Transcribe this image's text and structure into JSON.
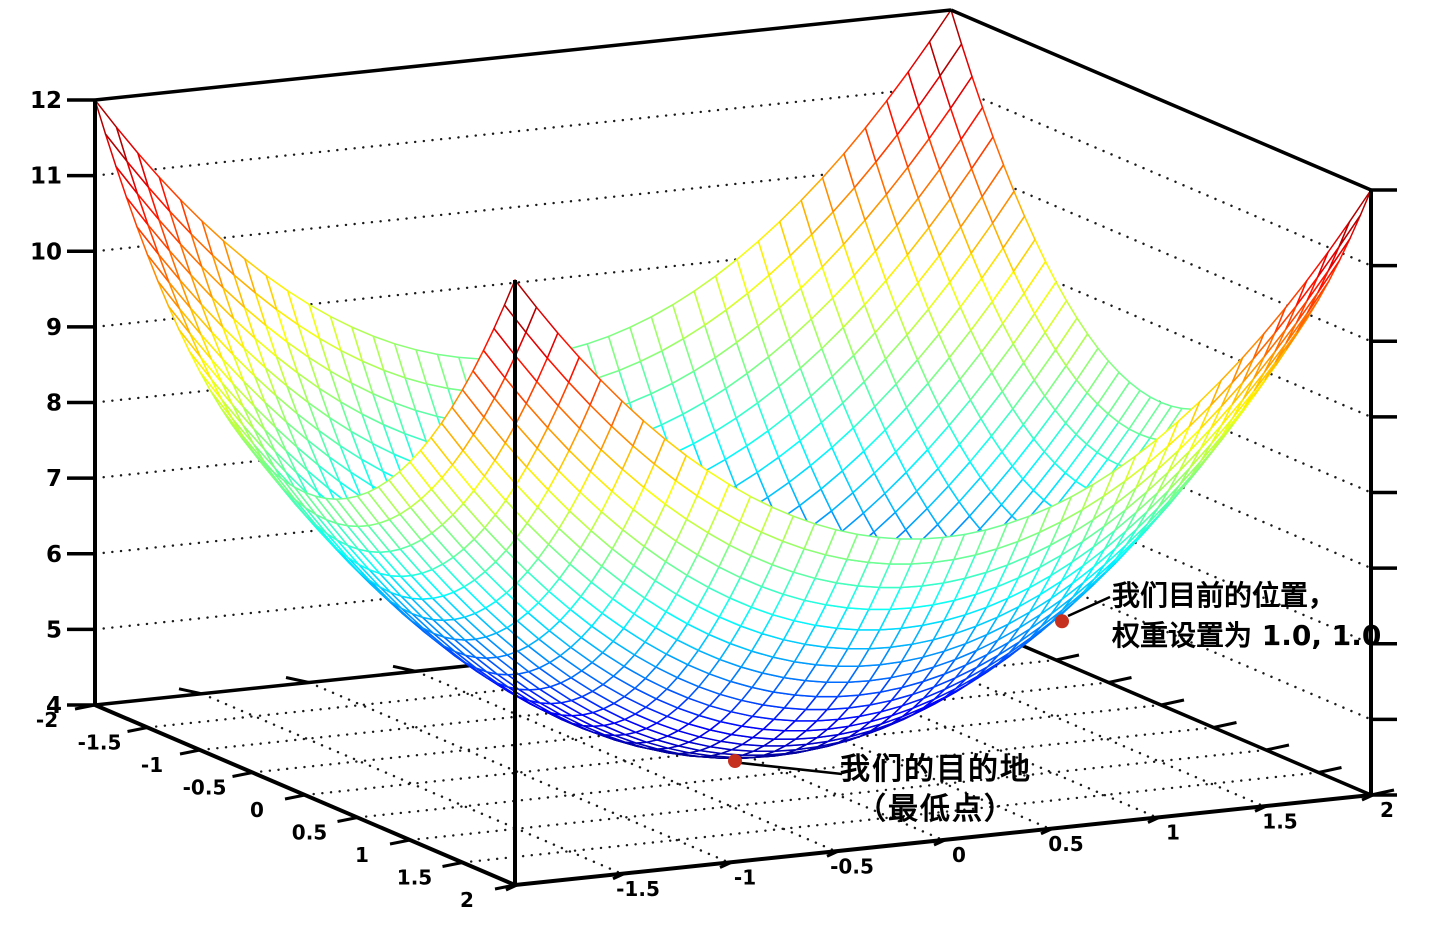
{
  "figure": {
    "background": "#ffffff",
    "description": "3D wireframe surface plot of an error bowl used to illustrate gradient descent"
  },
  "chart_data": {
    "type": "surface_wireframe",
    "function": "z = x^2 + y^2 + 4",
    "surface": {
      "coeff_x2": 1,
      "coeff_y2": 1,
      "z_base": 4
    },
    "x_range": [
      -2,
      2
    ],
    "y_range": [
      -2,
      2
    ],
    "z_range": [
      4,
      12
    ],
    "grid_divisions": 40,
    "tick_step": 0.5,
    "x_tick_values": [
      -2,
      -1.5,
      -1,
      -0.5,
      0,
      0.5,
      1,
      1.5,
      2
    ],
    "x_tick_labels": [
      "-2",
      "-1.5",
      "-1",
      "-0.5",
      "0",
      "0.5",
      "1",
      "1.5",
      "2"
    ],
    "y_tick_values": [
      -2,
      -1.5,
      -1,
      -0.5,
      0,
      0.5,
      1,
      1.5,
      2
    ],
    "y_tick_labels": [
      "-2",
      "-1.5",
      "-1",
      "-0.5",
      "0",
      "0.5",
      "1",
      "1.5",
      "2"
    ],
    "z_tick_values": [
      4,
      5,
      6,
      7,
      8,
      9,
      10,
      11,
      12
    ],
    "z_tick_labels": [
      "4",
      "5",
      "6",
      "7",
      "8",
      "9",
      "10",
      "11",
      "12"
    ],
    "wall_grid_z": [
      5,
      6,
      7,
      8,
      9,
      10,
      11
    ],
    "floor_grid_values": [
      -1.5,
      -1,
      -0.5,
      0,
      0.5,
      1,
      1.5
    ],
    "colormap": "jet",
    "grid_dotted": true,
    "axis_color": "#000000",
    "markers": [
      {
        "x": 1,
        "y": 1,
        "z": 6,
        "color": "#c6301f",
        "label_lines": [
          "我们目前的位置，",
          "权重设置为 1.0, 1.0"
        ]
      },
      {
        "x": 0,
        "y": 0,
        "z": 4,
        "color": "#c6301f",
        "label_lines": [
          "我们的目的地",
          "（最低点）"
        ]
      }
    ]
  }
}
